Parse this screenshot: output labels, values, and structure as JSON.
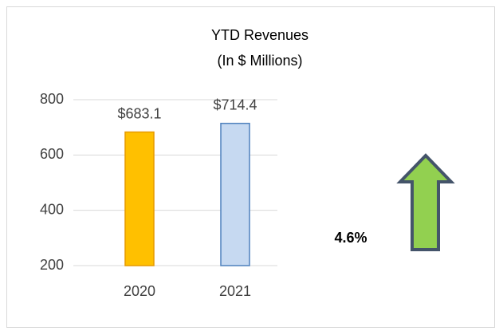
{
  "chart_data": {
    "type": "bar",
    "title": "YTD Revenues",
    "subtitle": "(In $ Millions)",
    "categories": [
      "2020",
      "2021"
    ],
    "values": [
      683.1,
      714.4
    ],
    "value_labels": [
      "$683.1",
      "$714.4"
    ],
    "colors": [
      "#FFC000",
      "#C6D9F1"
    ],
    "edge_colors": [
      "#E69A00",
      "#4F81BD"
    ],
    "ylim": [
      200,
      800
    ],
    "yticks": [
      200,
      400,
      600,
      800
    ],
    "grid": true,
    "annotations": [
      "4.6%"
    ]
  }
}
